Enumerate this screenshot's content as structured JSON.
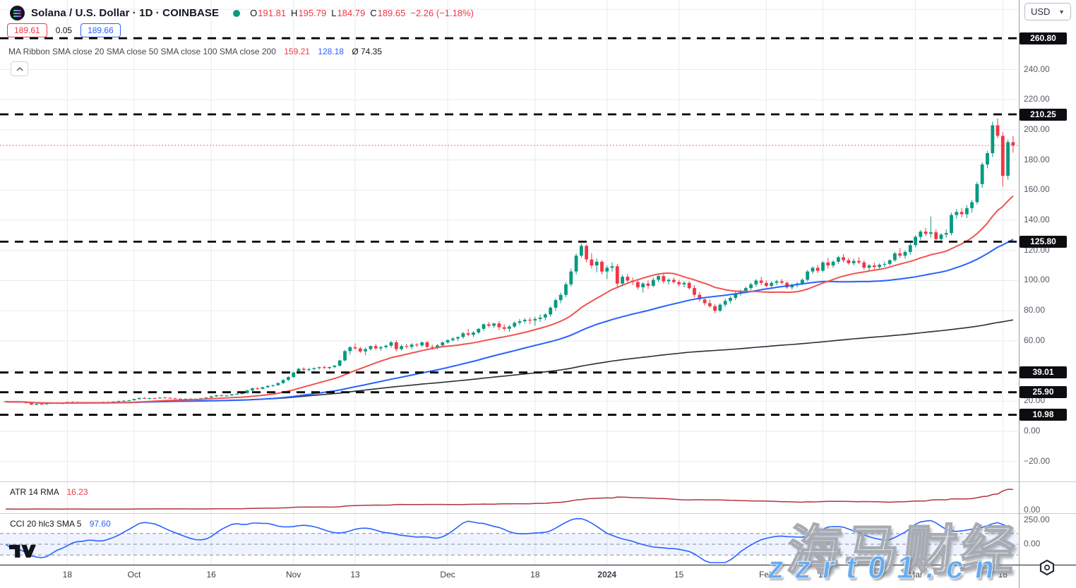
{
  "header": {
    "symbol_title": "Solana / U.S. Dollar · 1D · COINBASE",
    "ohlc": {
      "o_label": "O",
      "o": "191.81",
      "h_label": "H",
      "h": "195.79",
      "l_label": "L",
      "l": "184.79",
      "c_label": "C",
      "c": "189.65",
      "change": "−2.26 (−1.18%)"
    },
    "bid": "189.61",
    "spread": "0.05",
    "ask": "189.66",
    "ma_ribbon_label": "MA Ribbon SMA close 20 SMA close 50 SMA close 100 SMA close 200",
    "ma_values": {
      "sma20": "159.21",
      "sma50": "128.18",
      "avg": "Ø 74.35"
    },
    "collapse_glyph": "⌃"
  },
  "axis": {
    "currency": "USD",
    "price_labels": [
      {
        "t": "240.00",
        "v": 240
      },
      {
        "t": "220.00",
        "v": 220
      },
      {
        "t": "200.00",
        "v": 200
      },
      {
        "t": "180.00",
        "v": 180
      },
      {
        "t": "160.00",
        "v": 160
      },
      {
        "t": "140.00",
        "v": 140
      },
      {
        "t": "120.00",
        "v": 120
      },
      {
        "t": "100.00",
        "v": 100
      },
      {
        "t": "80.00",
        "v": 80
      },
      {
        "t": "60.00",
        "v": 60
      },
      {
        "t": "20.00",
        "v": 20
      },
      {
        "t": "0.00",
        "v": 0
      },
      {
        "t": "−20.00",
        "v": -20
      }
    ],
    "badges": [
      {
        "t": "260.80",
        "v": 260.8
      },
      {
        "t": "210.25",
        "v": 210.25
      },
      {
        "t": "125.80",
        "v": 125.8
      },
      {
        "t": "39.01",
        "v": 39.01
      },
      {
        "t": "25.90",
        "v": 25.9
      },
      {
        "t": "10.98",
        "v": 10.98
      }
    ],
    "sub_axis": {
      "atr_zero": "0.00",
      "cci_top": "250.00",
      "cci_zero": "0.00"
    }
  },
  "indicators": {
    "atr": {
      "label": "ATR 14 RMA",
      "value": "16.23"
    },
    "cci": {
      "label": "CCI 20 hlc3 SMA 5",
      "value": "97.60"
    }
  },
  "watermark": {
    "cn_text": "海马财经",
    "url_text": "zzrt01.cn"
  },
  "chart_data": {
    "type": "candlestick",
    "symbol": "SOL/USD",
    "timeframe": "1D",
    "exchange": "COINBASE",
    "price_axis": {
      "min": -28,
      "max": 286,
      "tick_step": 20
    },
    "current_price": 189.65,
    "horizontal_levels": [
      260.8,
      210.25,
      125.8,
      39.01,
      25.9,
      10.98
    ],
    "overlays": [
      {
        "name": "SMA 20",
        "color": "#ef5350"
      },
      {
        "name": "SMA 50",
        "color": "#2962ff"
      },
      {
        "name": "SMA 200",
        "color": "#2a2e39"
      }
    ],
    "sub_panes": [
      {
        "name": "ATR 14 RMA",
        "color": "#b2333e",
        "last": 16.23
      },
      {
        "name": "CCI 20 hlc3 SMA 5",
        "color": "#2962ff",
        "last": 97.6,
        "band": [
          -100,
          100
        ]
      }
    ],
    "time_ticks": [
      {
        "i": 12,
        "t": "18"
      },
      {
        "i": 25,
        "t": "Oct"
      },
      {
        "i": 40,
        "t": "16"
      },
      {
        "i": 56,
        "t": "Nov"
      },
      {
        "i": 68,
        "t": "13"
      },
      {
        "i": 86,
        "t": "Dec"
      },
      {
        "i": 103,
        "t": "18"
      },
      {
        "i": 117,
        "t": "2024",
        "year": true
      },
      {
        "i": 131,
        "t": "15"
      },
      {
        "i": 148,
        "t": "Feb"
      },
      {
        "i": 159,
        "t": "12"
      },
      {
        "i": 177,
        "t": "Mar"
      },
      {
        "i": 194,
        "t": "18"
      }
    ],
    "candles": [
      [
        19.8,
        20.1,
        19.3,
        19.6
      ],
      [
        19.6,
        19.9,
        19.2,
        19.4
      ],
      [
        19.4,
        19.8,
        19.1,
        19.6
      ],
      [
        19.6,
        19.7,
        19.2,
        19.3
      ],
      [
        19.3,
        19.4,
        18.5,
        18.7
      ],
      [
        18.7,
        18.9,
        17.4,
        17.7
      ],
      [
        17.7,
        18.3,
        17.3,
        18.1
      ],
      [
        18.1,
        18.4,
        17.8,
        18.0
      ],
      [
        18.0,
        18.6,
        17.9,
        18.4
      ],
      [
        18.4,
        18.9,
        18.2,
        18.7
      ],
      [
        18.7,
        19.0,
        18.4,
        18.6
      ],
      [
        18.6,
        18.8,
        18.3,
        18.5
      ],
      [
        18.5,
        19.6,
        18.4,
        19.4
      ],
      [
        19.4,
        19.9,
        19.0,
        19.2
      ],
      [
        19.2,
        19.6,
        18.9,
        19.1
      ],
      [
        19.1,
        19.3,
        18.6,
        18.8
      ],
      [
        18.8,
        19.3,
        18.6,
        19.1
      ],
      [
        19.1,
        19.4,
        18.9,
        19.2
      ],
      [
        19.2,
        19.5,
        18.9,
        19.0
      ],
      [
        19.0,
        19.6,
        18.8,
        19.4
      ],
      [
        19.4,
        19.8,
        19.1,
        19.3
      ],
      [
        19.3,
        19.9,
        19.1,
        19.7
      ],
      [
        19.7,
        20.3,
        19.4,
        20.1
      ],
      [
        20.1,
        20.6,
        19.8,
        20.3
      ],
      [
        20.3,
        20.8,
        20.1,
        20.6
      ],
      [
        20.6,
        21.6,
        20.4,
        21.4
      ],
      [
        21.4,
        22.4,
        21.0,
        22.1
      ],
      [
        22.1,
        22.6,
        21.5,
        21.8
      ],
      [
        21.8,
        22.3,
        21.2,
        22.0
      ],
      [
        22.0,
        22.5,
        21.6,
        21.9
      ],
      [
        21.9,
        22.6,
        21.5,
        22.4
      ],
      [
        22.4,
        22.8,
        22.0,
        22.2
      ],
      [
        22.2,
        22.5,
        21.7,
        21.9
      ],
      [
        21.9,
        22.2,
        21.3,
        21.6
      ],
      [
        21.6,
        21.9,
        21.0,
        21.3
      ],
      [
        21.3,
        21.8,
        21.0,
        21.6
      ],
      [
        21.6,
        21.9,
        21.1,
        21.4
      ],
      [
        21.4,
        21.8,
        21.2,
        21.6
      ],
      [
        21.6,
        22.1,
        21.4,
        21.9
      ],
      [
        21.9,
        22.6,
        21.7,
        22.4
      ],
      [
        22.4,
        23.5,
        22.1,
        23.2
      ],
      [
        23.2,
        24.2,
        22.8,
        23.9
      ],
      [
        23.9,
        24.4,
        23.1,
        23.4
      ],
      [
        23.4,
        24.0,
        23.0,
        23.8
      ],
      [
        23.8,
        24.8,
        23.5,
        24.5
      ],
      [
        24.5,
        25.2,
        24.1,
        24.9
      ],
      [
        24.9,
        25.6,
        24.4,
        25.3
      ],
      [
        25.3,
        27.5,
        25.0,
        27.1
      ],
      [
        27.1,
        29.0,
        26.6,
        28.5
      ],
      [
        28.5,
        29.3,
        27.6,
        28.1
      ],
      [
        28.1,
        29.6,
        27.8,
        29.2
      ],
      [
        29.2,
        30.5,
        28.7,
        30.1
      ],
      [
        30.1,
        31.0,
        29.5,
        30.6
      ],
      [
        30.6,
        32.5,
        30.2,
        32.0
      ],
      [
        32.0,
        34.5,
        31.5,
        34.0
      ],
      [
        34.0,
        36.5,
        33.5,
        36.0
      ],
      [
        36.0,
        39.5,
        35.5,
        39.0
      ],
      [
        39.0,
        42.0,
        38.0,
        41.5
      ],
      [
        41.5,
        42.5,
        40.0,
        40.8
      ],
      [
        40.8,
        42.0,
        39.8,
        41.3
      ],
      [
        41.3,
        42.3,
        40.5,
        41.9
      ],
      [
        41.9,
        43.0,
        41.0,
        42.5
      ],
      [
        42.5,
        43.5,
        41.5,
        42.0
      ],
      [
        42.0,
        43.0,
        41.2,
        42.6
      ],
      [
        42.6,
        44.0,
        41.8,
        43.5
      ],
      [
        43.5,
        47.5,
        43.0,
        47.0
      ],
      [
        47.0,
        54.0,
        46.5,
        53.2
      ],
      [
        53.2,
        56.5,
        51.0,
        55.8
      ],
      [
        55.8,
        58.3,
        54.0,
        55.0
      ],
      [
        55.0,
        56.0,
        52.0,
        53.0
      ],
      [
        53.0,
        55.5,
        50.5,
        54.5
      ],
      [
        54.5,
        57.0,
        53.5,
        56.5
      ],
      [
        56.5,
        58.0,
        54.0,
        55.0
      ],
      [
        55.0,
        56.5,
        53.5,
        55.8
      ],
      [
        55.8,
        57.5,
        54.8,
        56.8
      ],
      [
        56.8,
        60.0,
        55.5,
        59.0
      ],
      [
        59.0,
        60.5,
        53.0,
        54.5
      ],
      [
        54.5,
        57.5,
        53.5,
        56.5
      ],
      [
        56.5,
        58.0,
        55.0,
        56.0
      ],
      [
        56.0,
        58.5,
        54.5,
        57.5
      ],
      [
        57.5,
        58.5,
        56.0,
        57.0
      ],
      [
        57.0,
        59.5,
        56.0,
        59.0
      ],
      [
        59.0,
        60.0,
        55.0,
        56.0
      ],
      [
        56.0,
        57.5,
        54.0,
        55.5
      ],
      [
        55.5,
        58.0,
        54.5,
        57.0
      ],
      [
        57.0,
        59.5,
        56.0,
        59.0
      ],
      [
        59.0,
        61.0,
        58.0,
        60.5
      ],
      [
        60.5,
        62.5,
        59.5,
        61.5
      ],
      [
        61.5,
        63.0,
        60.0,
        62.5
      ],
      [
        62.5,
        66.0,
        61.5,
        65.0
      ],
      [
        65.0,
        68.0,
        63.0,
        64.0
      ],
      [
        64.0,
        66.5,
        62.5,
        65.5
      ],
      [
        65.5,
        68.5,
        64.5,
        68.0
      ],
      [
        68.0,
        71.5,
        66.5,
        71.0
      ],
      [
        71.0,
        72.5,
        69.0,
        70.0
      ],
      [
        70.0,
        72.0,
        68.5,
        71.5
      ],
      [
        71.5,
        73.0,
        67.0,
        69.0
      ],
      [
        69.0,
        71.0,
        66.5,
        68.0
      ],
      [
        68.0,
        70.5,
        66.0,
        69.5
      ],
      [
        69.5,
        73.0,
        68.5,
        72.0
      ],
      [
        72.0,
        74.5,
        70.5,
        73.0
      ],
      [
        73.0,
        75.0,
        71.5,
        74.0
      ],
      [
        74.0,
        75.5,
        71.0,
        73.5
      ],
      [
        73.5,
        76.0,
        70.0,
        74.5
      ],
      [
        74.5,
        77.5,
        72.5,
        75.5
      ],
      [
        75.5,
        78.5,
        73.5,
        77.5
      ],
      [
        77.5,
        83.0,
        76.0,
        82.0
      ],
      [
        82.0,
        88.0,
        80.0,
        87.0
      ],
      [
        87.0,
        92.0,
        85.0,
        90.5
      ],
      [
        90.5,
        99.0,
        89.0,
        97.5
      ],
      [
        97.5,
        108.0,
        96.0,
        106.0
      ],
      [
        106.0,
        118.0,
        104.0,
        116.5
      ],
      [
        116.5,
        124.5,
        115.0,
        123.0
      ],
      [
        123.0,
        124.0,
        112.0,
        114.0
      ],
      [
        114.0,
        118.0,
        108.0,
        110.0
      ],
      [
        110.0,
        114.5,
        105.5,
        112.5
      ],
      [
        112.5,
        113.5,
        104.0,
        106.0
      ],
      [
        106.0,
        110.0,
        101.0,
        108.5
      ],
      [
        108.5,
        112.0,
        106.0,
        109.5
      ],
      [
        109.5,
        111.0,
        95.0,
        98.0
      ],
      [
        98.0,
        104.0,
        96.0,
        102.5
      ],
      [
        102.5,
        104.5,
        98.5,
        100.0
      ],
      [
        100.0,
        102.0,
        97.0,
        99.0
      ],
      [
        99.0,
        100.5,
        94.0,
        95.5
      ],
      [
        95.5,
        99.0,
        92.0,
        98.0
      ],
      [
        98.0,
        100.0,
        94.5,
        96.5
      ],
      [
        96.5,
        102.0,
        95.5,
        100.5
      ],
      [
        100.5,
        104.0,
        99.0,
        103.0
      ],
      [
        103.0,
        104.5,
        98.0,
        99.5
      ],
      [
        99.5,
        101.5,
        97.5,
        100.5
      ],
      [
        100.5,
        102.0,
        98.0,
        99.0
      ],
      [
        99.0,
        100.5,
        96.0,
        97.5
      ],
      [
        97.5,
        99.5,
        95.5,
        98.5
      ],
      [
        98.5,
        99.5,
        94.0,
        95.0
      ],
      [
        95.0,
        97.0,
        89.0,
        90.5
      ],
      [
        90.5,
        92.5,
        86.0,
        87.5
      ],
      [
        87.5,
        89.0,
        83.5,
        85.0
      ],
      [
        85.0,
        87.5,
        82.0,
        83.0
      ],
      [
        83.0,
        84.5,
        78.5,
        80.0
      ],
      [
        80.0,
        85.0,
        79.0,
        84.0
      ],
      [
        84.0,
        88.0,
        82.5,
        86.5
      ],
      [
        86.5,
        89.5,
        85.0,
        88.5
      ],
      [
        88.5,
        92.5,
        87.0,
        91.5
      ],
      [
        91.5,
        94.0,
        90.0,
        93.0
      ],
      [
        93.0,
        96.0,
        91.5,
        95.0
      ],
      [
        95.0,
        98.5,
        93.5,
        97.5
      ],
      [
        97.5,
        101.0,
        96.0,
        100.0
      ],
      [
        100.0,
        102.5,
        97.0,
        98.5
      ],
      [
        98.5,
        100.0,
        95.5,
        96.5
      ],
      [
        96.5,
        99.5,
        95.0,
        98.5
      ],
      [
        98.5,
        100.5,
        97.0,
        99.5
      ],
      [
        99.5,
        101.0,
        97.5,
        98.5
      ],
      [
        98.5,
        99.5,
        94.5,
        95.5
      ],
      [
        95.5,
        98.0,
        94.0,
        97.0
      ],
      [
        97.0,
        99.0,
        95.5,
        98.0
      ],
      [
        98.0,
        101.5,
        97.0,
        100.5
      ],
      [
        100.5,
        107.0,
        99.5,
        106.0
      ],
      [
        106.0,
        109.5,
        104.5,
        108.5
      ],
      [
        108.5,
        110.5,
        105.0,
        106.5
      ],
      [
        106.5,
        113.0,
        105.5,
        112.0
      ],
      [
        112.0,
        115.0,
        108.0,
        110.0
      ],
      [
        110.0,
        113.5,
        108.5,
        112.5
      ],
      [
        112.5,
        116.5,
        111.0,
        115.5
      ],
      [
        115.5,
        117.5,
        112.0,
        113.5
      ],
      [
        113.5,
        115.0,
        110.5,
        111.5
      ],
      [
        111.5,
        114.5,
        110.0,
        113.0
      ],
      [
        113.0,
        115.5,
        111.0,
        112.0
      ],
      [
        112.0,
        113.5,
        107.0,
        108.5
      ],
      [
        108.5,
        111.0,
        106.5,
        110.0
      ],
      [
        110.0,
        112.0,
        107.5,
        109.0
      ],
      [
        109.0,
        111.5,
        107.0,
        110.5
      ],
      [
        110.5,
        112.5,
        109.0,
        111.0
      ],
      [
        111.0,
        114.0,
        110.0,
        113.5
      ],
      [
        113.5,
        119.0,
        112.5,
        118.0
      ],
      [
        118.0,
        121.5,
        115.0,
        116.5
      ],
      [
        116.5,
        120.0,
        114.5,
        119.0
      ],
      [
        119.0,
        125.0,
        117.0,
        123.5
      ],
      [
        123.5,
        130.0,
        122.0,
        129.0
      ],
      [
        129.0,
        133.5,
        127.0,
        132.5
      ],
      [
        132.5,
        135.0,
        129.5,
        131.0
      ],
      [
        131.0,
        142.5,
        128.5,
        132.0
      ],
      [
        132.0,
        134.0,
        125.5,
        127.5
      ],
      [
        127.5,
        131.5,
        125.0,
        130.5
      ],
      [
        130.5,
        134.0,
        128.5,
        131.5
      ],
      [
        131.5,
        145.0,
        130.0,
        143.5
      ],
      [
        143.5,
        147.5,
        141.0,
        145.5
      ],
      [
        145.5,
        148.0,
        142.0,
        144.0
      ],
      [
        144.0,
        150.0,
        141.5,
        148.0
      ],
      [
        148.0,
        153.5,
        145.0,
        152.0
      ],
      [
        152.0,
        165.5,
        150.5,
        164.0
      ],
      [
        164.0,
        178.5,
        161.5,
        177.0
      ],
      [
        177.0,
        186.0,
        174.5,
        184.5
      ],
      [
        184.5,
        205.5,
        182.0,
        203.0
      ],
      [
        203.0,
        207.5,
        194.5,
        196.0
      ],
      [
        196.0,
        198.5,
        162.5,
        169.5
      ],
      [
        169.5,
        193.5,
        167.0,
        191.81
      ],
      [
        191.81,
        195.79,
        184.79,
        189.65
      ]
    ]
  },
  "colors": {
    "up": "#089981",
    "down": "#f23645",
    "sma20": "#ef5350",
    "sma50": "#2962ff",
    "sma200": "#2a2e39",
    "atr_line": "#b2333e",
    "cci_line": "#2962ff",
    "level_line": "#000000",
    "current_price_line": "#f23645",
    "grid": "#e8eaef",
    "axis_border": "#999ea8"
  }
}
